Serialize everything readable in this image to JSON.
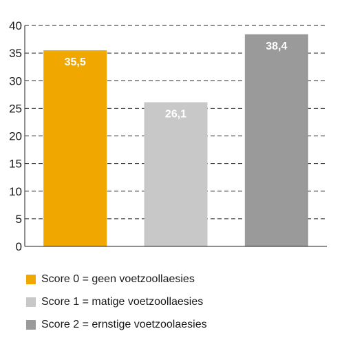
{
  "chart_data": {
    "type": "bar",
    "categories": [
      "Score 0 = geen voetzoollaesies",
      "Score 1 = matige voetzoollaesies",
      "Score 2 = ernstige voetzoolaesies"
    ],
    "values": [
      35.5,
      26.1,
      38.4
    ],
    "value_labels": [
      "35,5",
      "26,1",
      "38,4"
    ],
    "colors": [
      "#f0a800",
      "#c8c8c8",
      "#9a9a9a"
    ],
    "ylim": [
      0,
      40
    ],
    "yticks": [
      0,
      5,
      10,
      15,
      20,
      25,
      30,
      35,
      40
    ],
    "ytick_labels": [
      "0",
      "5",
      "10",
      "15",
      "20",
      "25",
      "30",
      "35",
      "40"
    ],
    "grid": "horizontal dashed",
    "legend_position": "bottom",
    "title": "",
    "xlabel": "",
    "ylabel": ""
  }
}
